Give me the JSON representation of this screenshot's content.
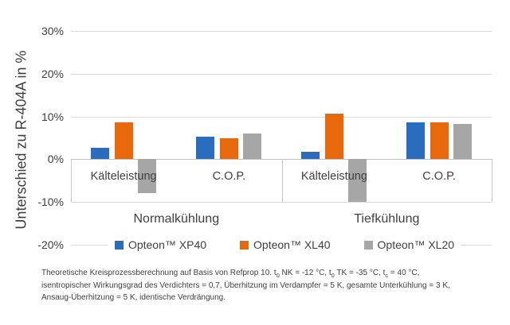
{
  "chart_data": {
    "type": "bar",
    "title": "",
    "ylabel": "Unterschied zu R-404A in %",
    "ylim": [
      -20,
      30
    ],
    "grid": true,
    "legend_position": "bottom",
    "yticks": [
      {
        "label": "30%",
        "value": 30
      },
      {
        "label": "20%",
        "value": 20
      },
      {
        "label": "10%",
        "value": 10
      },
      {
        "label": "0%",
        "value": 0
      },
      {
        "label": "-10%",
        "value": -10
      },
      {
        "label": "-20%",
        "value": -20
      }
    ],
    "groups": [
      {
        "label": "Normalkühlung",
        "categories": [
          "Kälteleistung",
          "C.O.P."
        ]
      },
      {
        "label": "Tiefkühlung",
        "categories": [
          "Kälteleistung",
          "C.O.P."
        ]
      }
    ],
    "category_order_note": "values arrays are ordered: Normalkühlung-Kälteleistung, Normalkühlung-C.O.P., Tiefkühlung-Kälteleistung, Tiefkühlung-C.O.P.",
    "series": [
      {
        "name": "Opteon™ XP40",
        "color": "#2A6CBE",
        "values": [
          2.7,
          5.3,
          1.7,
          8.7
        ]
      },
      {
        "name": "Opteon™ XL40",
        "color": "#E8690C",
        "values": [
          8.7,
          5.0,
          10.7,
          8.7
        ]
      },
      {
        "name": "Opteon™ XL20",
        "color": "#A6A6A6",
        "values": [
          -8.0,
          6.0,
          -10.0,
          8.3
        ]
      }
    ]
  },
  "footnote": {
    "line1": [
      {
        "text": "Theoretische Kreisprozessberechnung auf Basis von Refprop 10. t"
      },
      {
        "text": "0",
        "sub": true
      },
      {
        "text": " NK = -12 °C, t"
      },
      {
        "text": "0",
        "sub": true
      },
      {
        "text": " TK = -35 °C, t"
      },
      {
        "text": "c",
        "sub": true
      },
      {
        "text": " = 40 °C,"
      }
    ],
    "line2": "isentropischer Wirkungsgrad des Verdichters = 0,7, Überhitzung im Verdampfer = 5 K, gesamte Unterkühlung = 3 K,",
    "line3": "Ansaug-Überhitzung = 5 K, identische Verdrängung."
  }
}
